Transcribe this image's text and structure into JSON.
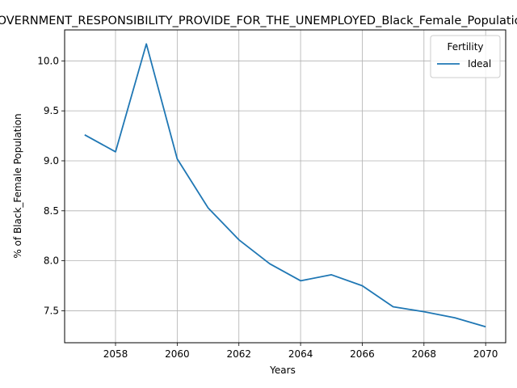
{
  "chart_data": {
    "type": "line",
    "title": "GOVERNMENT_RESPONSIBILITY_PROVIDE_FOR_THE_UNEMPLOYED_Black_Female_Population",
    "xlabel": "Years",
    "ylabel": "% of Black_Female Population",
    "x": [
      2057,
      2058,
      2059,
      2060,
      2061,
      2062,
      2063,
      2064,
      2065,
      2066,
      2067,
      2068,
      2069,
      2070
    ],
    "series": [
      {
        "name": "Ideal",
        "color": "#1f77b4",
        "values": [
          9.26,
          9.09,
          10.17,
          9.02,
          8.53,
          8.21,
          7.97,
          7.8,
          7.86,
          7.75,
          7.54,
          7.49,
          7.43,
          7.34
        ]
      }
    ],
    "xlim": [
      2056.35,
      2070.65
    ],
    "ylim": [
      7.18,
      10.31
    ],
    "xticks": [
      2058,
      2060,
      2062,
      2064,
      2066,
      2068,
      2070
    ],
    "yticks": [
      7.5,
      8.0,
      8.5,
      9.0,
      9.5,
      10.0
    ],
    "ytick_labels": [
      "7.5",
      "8.0",
      "8.5",
      "9.0",
      "9.5",
      "10.0"
    ],
    "grid": true,
    "legend": {
      "title": "Fertility",
      "position": "top-right"
    }
  }
}
